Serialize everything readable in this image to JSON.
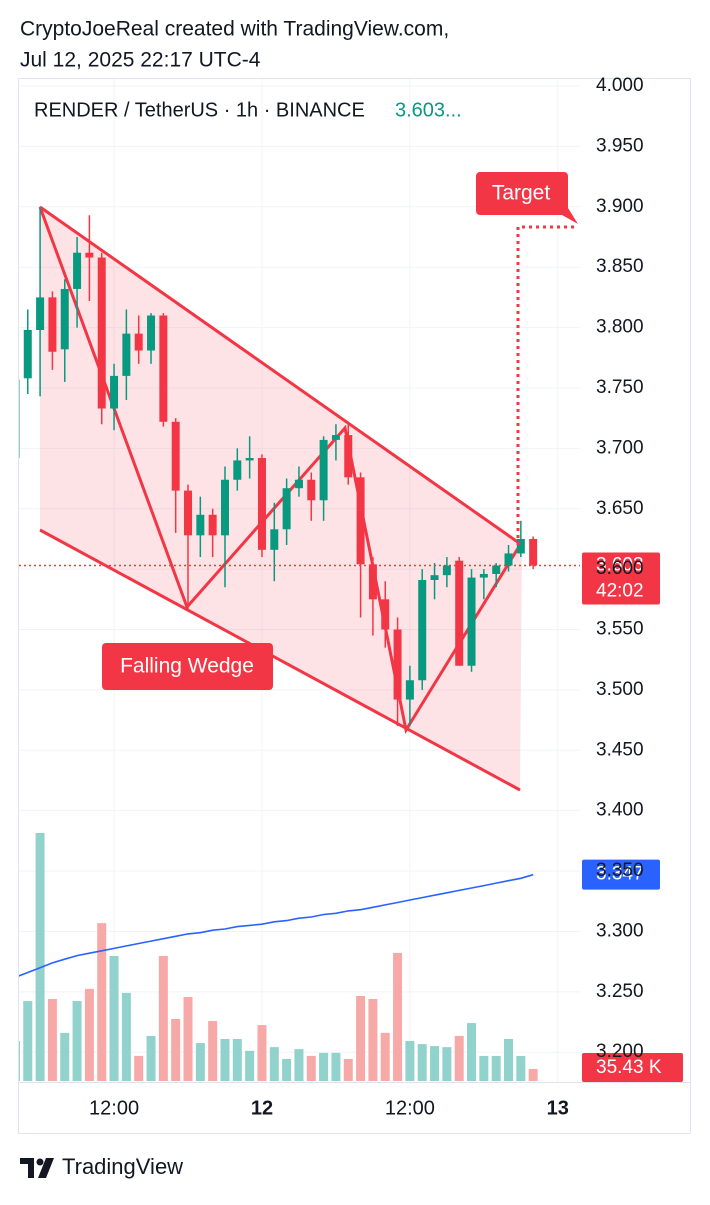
{
  "header": {
    "line1": "CryptoJoeReal created with TradingView.com,",
    "line2": "Jul 12, 2025 22:17 UTC-4"
  },
  "footer": {
    "brand": "TradingView"
  },
  "chart_data": {
    "type": "candlestick",
    "symbol_label": "RENDER / TetherUS · 1h · BINANCE",
    "legend_price": "3.603...",
    "ylim": [
      3.177,
      4.005
    ],
    "yticks": [
      {
        "value": 4.0,
        "label": "4.000"
      },
      {
        "value": 3.95,
        "label": "3.950"
      },
      {
        "value": 3.9,
        "label": "3.900"
      },
      {
        "value": 3.85,
        "label": "3.850"
      },
      {
        "value": 3.8,
        "label": "3.800"
      },
      {
        "value": 3.75,
        "label": "3.750"
      },
      {
        "value": 3.7,
        "label": "3.700"
      },
      {
        "value": 3.65,
        "label": "3.650"
      },
      {
        "value": 3.6,
        "label": "3.600"
      },
      {
        "value": 3.55,
        "label": "3.550"
      },
      {
        "value": 3.5,
        "label": "3.500"
      },
      {
        "value": 3.45,
        "label": "3.450"
      },
      {
        "value": 3.4,
        "label": "3.400"
      },
      {
        "value": 3.35,
        "label": "3.350"
      },
      {
        "value": 3.3,
        "label": "3.300"
      },
      {
        "value": 3.25,
        "label": "3.250"
      },
      {
        "value": 3.2,
        "label": "3.200"
      }
    ],
    "xlim": [
      0.37,
      45.8
    ],
    "xticks": [
      {
        "value": 8,
        "label": "12:00"
      },
      {
        "value": 20,
        "label": "12"
      },
      {
        "value": 32,
        "label": "12:00"
      },
      {
        "value": 44,
        "label": "13"
      }
    ],
    "grid": true,
    "up_color": "#089981",
    "down_color": "#f23645",
    "open": [
      3.692,
      3.758,
      3.798,
      3.825,
      3.782,
      3.832,
      3.862,
      3.858,
      3.733,
      3.76,
      3.795,
      3.781,
      3.81,
      3.722,
      3.665,
      3.628,
      3.645,
      3.628,
      3.674,
      3.69,
      3.692,
      3.616,
      3.633,
      3.667,
      3.674,
      3.657,
      3.707,
      3.711,
      3.676,
      3.604,
      3.575,
      3.55,
      3.492,
      3.508,
      3.591,
      3.595,
      3.607,
      3.52,
      3.593,
      3.596,
      3.603,
      3.613,
      3.625
    ],
    "high": [
      3.76,
      3.815,
      3.9,
      3.83,
      3.84,
      3.875,
      3.893,
      3.862,
      3.77,
      3.815,
      3.81,
      3.812,
      3.812,
      3.725,
      3.67,
      3.66,
      3.65,
      3.685,
      3.7,
      3.71,
      3.695,
      3.655,
      3.675,
      3.685,
      3.68,
      3.71,
      3.72,
      3.72,
      3.68,
      3.61,
      3.59,
      3.56,
      3.52,
      3.6,
      3.605,
      3.61,
      3.61,
      3.6,
      3.6,
      3.605,
      3.62,
      3.64,
      3.627
    ],
    "low": [
      3.69,
      3.745,
      3.743,
      3.765,
      3.755,
      3.8,
      3.822,
      3.72,
      3.715,
      3.74,
      3.77,
      3.77,
      3.718,
      3.63,
      3.565,
      3.61,
      3.61,
      3.585,
      3.665,
      3.675,
      3.61,
      3.59,
      3.62,
      3.66,
      3.64,
      3.64,
      3.69,
      3.67,
      3.56,
      3.545,
      3.535,
      3.47,
      3.47,
      3.5,
      3.575,
      3.585,
      3.52,
      3.515,
      3.575,
      3.585,
      3.598,
      3.61,
      3.6
    ],
    "close": [
      3.757,
      3.798,
      3.825,
      3.78,
      3.832,
      3.862,
      3.858,
      3.733,
      3.76,
      3.795,
      3.781,
      3.81,
      3.722,
      3.665,
      3.628,
      3.645,
      3.628,
      3.674,
      3.69,
      3.692,
      3.616,
      3.633,
      3.667,
      3.674,
      3.657,
      3.707,
      3.711,
      3.676,
      3.604,
      3.575,
      3.55,
      3.492,
      3.508,
      3.591,
      3.595,
      3.603,
      3.52,
      3.593,
      3.596,
      3.603,
      3.613,
      3.625,
      3.603
    ],
    "volume": {
      "up_color": "#92d2cc",
      "down_color": "#f7a9a7",
      "values": [
        118000,
        236000,
        732000,
        242000,
        142000,
        236000,
        272000,
        466000,
        369000,
        260000,
        74000,
        133000,
        369000,
        183000,
        248000,
        112000,
        177000,
        124000,
        124000,
        89000,
        165000,
        100000,
        65000,
        94000,
        74000,
        83000,
        83000,
        65000,
        251000,
        242000,
        142000,
        378000,
        118000,
        109000,
        103000,
        100000,
        133000,
        171000,
        74000,
        74000,
        124000,
        74000,
        35430
      ],
      "last_label": {
        "value": 35430,
        "label": "35.43 K"
      }
    },
    "volume_ma": {
      "color": "#2962ff",
      "last": 3.347,
      "values": [
        3.262,
        3.266,
        3.27,
        3.274,
        3.277,
        3.28,
        3.282,
        3.284,
        3.286,
        3.288,
        3.29,
        3.292,
        3.294,
        3.296,
        3.298,
        3.299,
        3.301,
        3.302,
        3.304,
        3.305,
        3.306,
        3.308,
        3.309,
        3.311,
        3.312,
        3.314,
        3.315,
        3.317,
        3.318,
        3.32,
        3.322,
        3.324,
        3.326,
        3.328,
        3.33,
        3.332,
        3.334,
        3.336,
        3.338,
        3.34,
        3.342,
        3.344,
        3.347
      ]
    },
    "last_price": 3.603,
    "countdown": "42:02",
    "annotations": [
      {
        "text": "Target"
      },
      {
        "text": "Falling Wedge"
      }
    ]
  }
}
